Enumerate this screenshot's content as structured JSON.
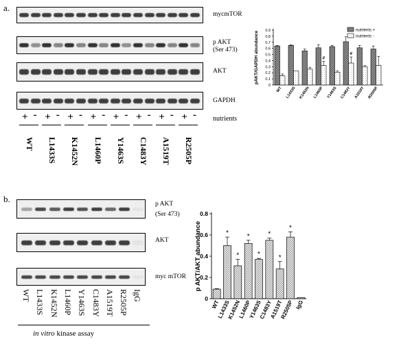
{
  "panel_a": {
    "label": "a.",
    "blots": [
      {
        "label": "mycmTOR"
      },
      {
        "label": "p AKT",
        "sub": "(Ser 473)"
      },
      {
        "label": "AKT"
      },
      {
        "label": "GAPDH"
      }
    ],
    "signs": [
      "+",
      "-",
      "+",
      "-",
      "+",
      "-",
      "+",
      "-",
      "+",
      "-",
      "+",
      "-",
      "+",
      "-",
      "+",
      "-"
    ],
    "nutrients_label": "nutrients",
    "lanes": [
      "WT",
      "L1433S",
      "K1452N",
      "L1460P",
      "Y1463S",
      "C1483Y",
      "A1519T",
      "R2505P"
    ]
  },
  "panel_b": {
    "label": "b.",
    "blots": [
      {
        "label": "p AKT",
        "sub": "(Ser 473)"
      },
      {
        "label": "AKT"
      },
      {
        "label": "myc mTOR"
      }
    ],
    "lanes": [
      "WT",
      "L1433S",
      "K1452N",
      "L1460P",
      "Y1463S",
      "C1483Y",
      "A1519T",
      "R2505P",
      "IgG"
    ],
    "caption_italic": "in vitro",
    "caption_rest": " kinase assay"
  },
  "chart_data": [
    {
      "type": "bar",
      "ylabel": "pAKT/GAPDH abundance",
      "xlabel": "",
      "categories": [
        "WT",
        "L1433S",
        "K1452N",
        "L1460P",
        "Y1463S",
        "C1483Y",
        "A1519T",
        "R2505P"
      ],
      "ylim": [
        0,
        0.9
      ],
      "yticks": [
        "0",
        "0.1",
        "0.2",
        "0.3",
        "0.4",
        "0.5",
        "0.6",
        "0.7",
        "0.8",
        "0.9"
      ],
      "legend_position": "top-right",
      "series": [
        {
          "name": "nutrients +",
          "color": "#7f7f7f",
          "values": [
            0.64,
            0.65,
            0.56,
            0.61,
            0.63,
            0.71,
            0.61,
            0.59
          ],
          "errors": [
            0.01,
            0.01,
            0.03,
            0.05,
            0.02,
            0.08,
            0.04,
            0.05
          ]
        },
        {
          "name": "nutrients -",
          "color": "#ffffff",
          "values": [
            0.15,
            0.23,
            0.26,
            0.32,
            0.21,
            0.36,
            0.3,
            0.32
          ],
          "errors": [
            0.03,
            0.0,
            0.03,
            0.07,
            0.02,
            0.1,
            0.02,
            0.15
          ]
        }
      ],
      "annotations": [
        {
          "category": "L1460P",
          "text": "#"
        },
        {
          "category": "C1483Y",
          "text": "#"
        }
      ]
    },
    {
      "type": "bar",
      "ylabel": "p AKT/AKT abundance",
      "xlabel": "",
      "categories": [
        "WT",
        "L1433S",
        "K1452N",
        "L1460P",
        "Y1463S",
        "C1483Y",
        "A1519T",
        "R2505P",
        "IgG"
      ],
      "ylim": [
        0,
        0.8
      ],
      "yticks": [
        "0",
        "0.2",
        "0.4",
        "0.6",
        "0.8"
      ],
      "values": [
        0.09,
        0.5,
        0.31,
        0.52,
        0.37,
        0.55,
        0.28,
        0.58,
        0.01
      ],
      "errors": [
        0.005,
        0.08,
        0.06,
        0.03,
        0.01,
        0.02,
        0.07,
        0.05,
        0.0
      ],
      "significance": [
        "",
        "*",
        "*",
        "*",
        "*",
        "*",
        "*",
        "*",
        ""
      ]
    }
  ]
}
